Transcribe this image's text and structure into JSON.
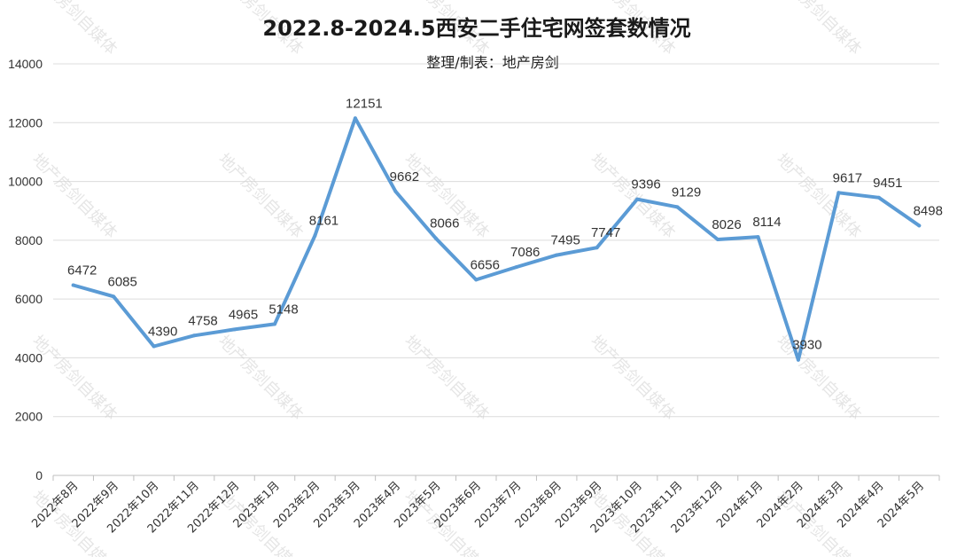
{
  "chart_data": {
    "type": "line",
    "title": "2022.8-2024.5西安二手住宅网签套数情况",
    "subtitle": "整理/制表：地产房剑",
    "watermark": "地产房剑自媒体",
    "xlabel": "",
    "ylabel": "",
    "ylim": [
      0,
      14000
    ],
    "yticks": [
      0,
      2000,
      4000,
      6000,
      8000,
      10000,
      12000,
      14000
    ],
    "grid": true,
    "legend": "none",
    "line_color": "#5b9bd5",
    "categories": [
      "2022年8月",
      "2022年9月",
      "2022年10月",
      "2022年11月",
      "2022年12月",
      "2023年1月",
      "2023年2月",
      "2023年3月",
      "2023年4月",
      "2023年5月",
      "2023年6月",
      "2023年7月",
      "2023年8月",
      "2023年9月",
      "2023年10月",
      "2023年11月",
      "2023年12月",
      "2024年1月",
      "2024年2月",
      "2024年3月",
      "2024年4月",
      "2024年5月"
    ],
    "values": [
      6472,
      6085,
      4390,
      4758,
      4965,
      5148,
      8161,
      12151,
      9662,
      8066,
      6656,
      7086,
      7495,
      7747,
      9396,
      9129,
      8026,
      8114,
      3930,
      9617,
      9451,
      8498
    ]
  }
}
